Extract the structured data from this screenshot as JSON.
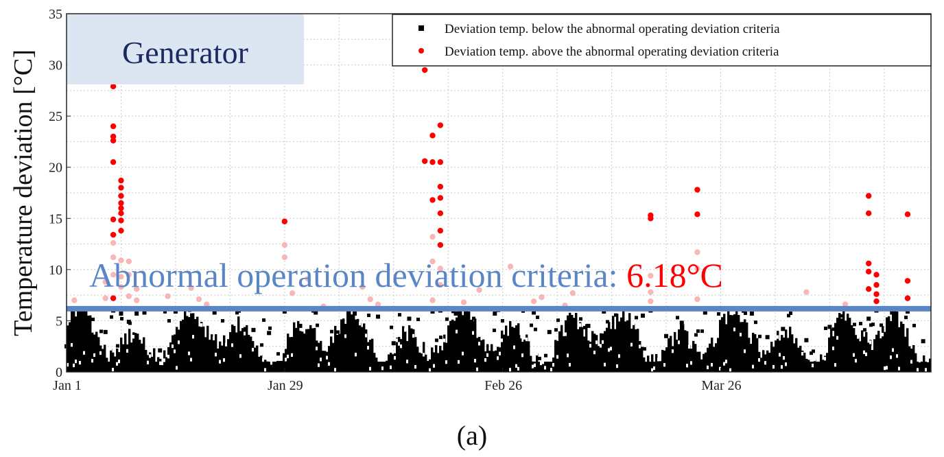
{
  "chart_data": {
    "type": "scatter",
    "panel_title": "Generator",
    "ylabel": "Temperature deviation [°C]",
    "xlabel": "",
    "ylim": [
      0,
      35
    ],
    "yticks": [
      0,
      5,
      10,
      15,
      20,
      25,
      30,
      35
    ],
    "x_range_days": [
      0,
      111
    ],
    "xticks": [
      {
        "label": "Jan 1",
        "day": 0
      },
      {
        "label": "Jan 29",
        "day": 28
      },
      {
        "label": "Feb 26",
        "day": 56
      },
      {
        "label": "Mar 26",
        "day": 84
      }
    ],
    "grid": true,
    "legend_position": "top-right",
    "criteria": {
      "value": 6.18,
      "label_prefix": "Abnormal operation deviation criteria: ",
      "label_value": "6.18°C",
      "line_color": "#5b86c5"
    },
    "series": [
      {
        "name": "Deviation temp. below the abnormal operating deviation criteria",
        "marker": "square",
        "color": "#000000",
        "x": [
          0,
          2,
          4,
          5,
          6,
          7,
          8,
          9,
          10,
          12,
          14,
          17,
          19,
          21,
          24,
          26,
          28,
          30,
          32,
          35,
          37,
          40,
          42,
          44,
          47,
          48,
          50,
          52,
          55,
          58,
          60,
          62,
          65,
          67,
          69,
          72,
          74,
          75,
          77,
          79,
          82,
          84,
          86,
          88,
          90,
          92,
          95,
          98,
          100,
          103,
          104,
          106,
          108,
          110
        ],
        "y": [
          2.5,
          5.6,
          3.2,
          3.9,
          6.0,
          5.7,
          4.9,
          5.7,
          5.8,
          2.1,
          5.9,
          4.2,
          5.8,
          1.7,
          4.1,
          3.8,
          5.9,
          4.5,
          5.8,
          3.1,
          5.7,
          5.4,
          2.8,
          5.2,
          5.9,
          6.0,
          5.7,
          4.9,
          5.7,
          3.4,
          5.8,
          3.9,
          2.6,
          4.5,
          5.9,
          4.2,
          5.5,
          6.0,
          3.5,
          4.8,
          5.8,
          2.9,
          4.8,
          5.7,
          3.4,
          4.2,
          3.1,
          4.4,
          4.1,
          5.2,
          6.0,
          5.8,
          5.9,
          3.0
        ]
      },
      {
        "name": "Deviation temp. above the abnormal operating deviation criteria",
        "marker": "circle",
        "color": "#ff0000",
        "x": [
          6,
          6,
          6,
          6,
          6,
          6,
          6,
          6,
          7,
          7,
          7,
          7,
          7,
          7,
          7,
          7,
          28,
          46,
          46,
          47,
          47,
          47,
          48,
          48,
          48,
          48,
          48,
          48,
          48,
          75,
          75,
          81,
          81,
          103,
          103,
          103,
          103,
          103,
          104,
          104,
          104,
          104,
          108,
          108,
          108
        ],
        "y": [
          27.9,
          24.0,
          23.0,
          22.6,
          20.5,
          14.9,
          13.4,
          7.2,
          18.7,
          18.0,
          17.2,
          16.5,
          16.0,
          15.5,
          14.8,
          13.8,
          14.7,
          29.5,
          20.6,
          20.5,
          16.8,
          23.1,
          24.1,
          20.5,
          18.1,
          17.0,
          15.5,
          13.8,
          12.4,
          15.3,
          15.0,
          17.8,
          15.4,
          17.2,
          15.5,
          10.6,
          9.8,
          8.1,
          9.5,
          8.5,
          7.6,
          6.9,
          15.4,
          8.9,
          7.2
        ]
      },
      {
        "name": "",
        "marker": "circle",
        "color": "#f7b7b7",
        "x": [
          1,
          5,
          5,
          6,
          6,
          6,
          7,
          7,
          7,
          8,
          8,
          8,
          9,
          9,
          13,
          16,
          17,
          18,
          28,
          28,
          29,
          31,
          33,
          38,
          39,
          40,
          47,
          47,
          47,
          48,
          48,
          51,
          53,
          57,
          60,
          61,
          64,
          65,
          75,
          75,
          75,
          81,
          81,
          81,
          95,
          100
        ],
        "y": [
          7.0,
          8.8,
          7.2,
          12.6,
          11.2,
          9.5,
          10.9,
          8.3,
          9.3,
          10.8,
          9.5,
          7.4,
          8.1,
          7.0,
          7.4,
          8.2,
          7.1,
          6.6,
          12.4,
          11.2,
          7.7,
          9.1,
          6.4,
          8.3,
          7.1,
          6.6,
          13.2,
          10.8,
          7.0,
          10.1,
          8.5,
          6.8,
          8.0,
          10.3,
          6.9,
          7.3,
          6.5,
          7.7,
          9.4,
          7.8,
          6.9,
          11.7,
          10.1,
          7.1,
          7.8,
          6.6
        ]
      }
    ]
  },
  "caption": "(a)"
}
